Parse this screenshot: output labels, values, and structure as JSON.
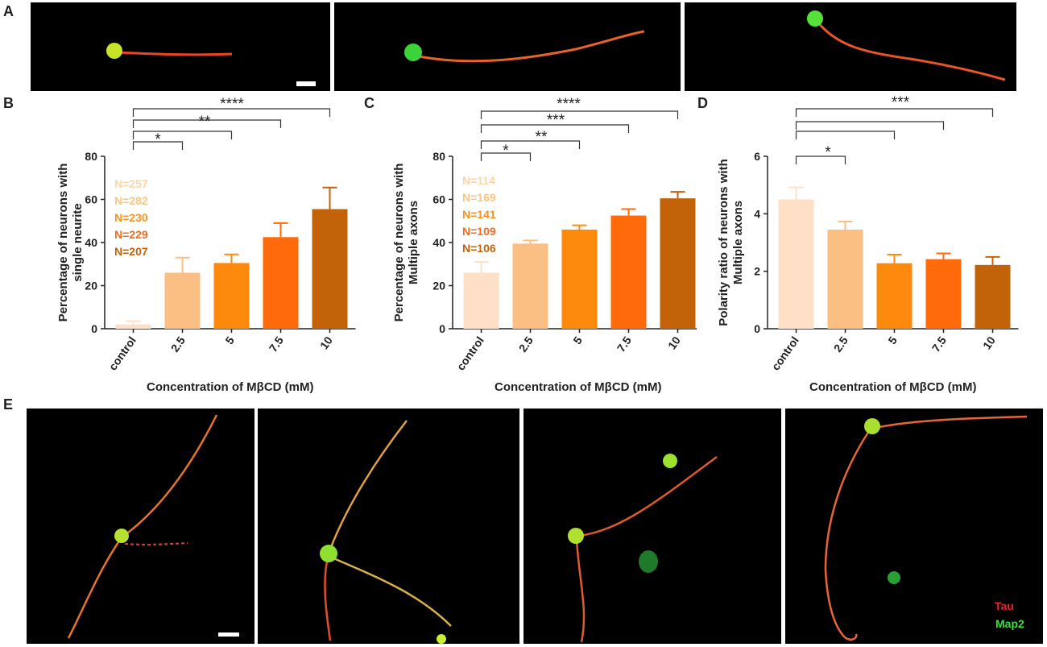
{
  "panels": {
    "a": "A",
    "b": "B",
    "c": "C",
    "d": "D",
    "e": "E"
  },
  "colors": [
    "#fde0c5",
    "#fbbf84",
    "#fe8a0d",
    "#ff6a0a",
    "#c26309"
  ],
  "n_colors": [
    "#fcd5a9",
    "#fdc57c",
    "#f7931e",
    "#f26b1d",
    "#c1640c"
  ],
  "legend": {
    "tau": "Tau",
    "map2": "Map2",
    "tau_color": "#e8232a",
    "map2_color": "#3be03b"
  },
  "chart_data": [
    {
      "type": "bar",
      "categories": [
        "control",
        "2.5",
        "5",
        "7.5",
        "10"
      ],
      "values": [
        2,
        26,
        30.5,
        42.5,
        55.5
      ],
      "errors": [
        1.5,
        7,
        4,
        6.5,
        10
      ],
      "xlabel": "Concentration of MβCD (mM)",
      "ylabel": "Percentage of neurons with single neurite",
      "ylabel_lines": [
        "Percentage of neurons with",
        "single neurite"
      ],
      "ylim": [
        0,
        80
      ],
      "yticks": [
        "0",
        "20",
        "40",
        "60",
        "80"
      ],
      "n_labels": [
        "N=257",
        "N=282",
        "N=230",
        "N=229",
        "N=207"
      ],
      "significance": [
        {
          "to": "2.5",
          "label": "*"
        },
        {
          "to": "5",
          "label": ""
        },
        {
          "to": "7.5",
          "label": "**"
        },
        {
          "to": "10",
          "label": "****"
        }
      ],
      "sig_label_rows": [
        {
          "between": [
            "2.5",
            "5"
          ],
          "label": "*"
        },
        {
          "between": [
            "5",
            "7.5"
          ],
          "label": "**"
        },
        {
          "between": [
            "7.5",
            "10"
          ],
          "label": "****"
        }
      ]
    },
    {
      "type": "bar",
      "categories": [
        "control",
        "2.5",
        "5",
        "7.5",
        "10"
      ],
      "values": [
        26,
        39.5,
        46,
        52.5,
        60.5
      ],
      "errors": [
        5,
        1.5,
        2,
        3,
        3
      ],
      "xlabel": "Concentration of MβCD (mM)",
      "ylabel": "Percentage of neurons with Multiple axons",
      "ylabel_lines": [
        "Percentage of neurons with",
        "Multiple axons"
      ],
      "ylim": [
        0,
        80
      ],
      "yticks": [
        "0",
        "20",
        "40",
        "60",
        "80"
      ],
      "n_labels": [
        "N=114",
        "N=169",
        "N=141",
        "N=109",
        "N=106"
      ],
      "sig_label_rows": [
        {
          "between": [
            "2.5",
            "5"
          ],
          "label": "*"
        },
        {
          "between": [
            "5",
            "7.5"
          ],
          "label": "**"
        },
        {
          "between": [
            "7.5",
            "10"
          ],
          "label": "***"
        },
        {
          "between": [
            "10",
            "10"
          ],
          "label": "****"
        }
      ]
    },
    {
      "type": "bar",
      "categories": [
        "control",
        "2.5",
        "5",
        "7.5",
        "10"
      ],
      "values": [
        4.5,
        3.45,
        2.28,
        2.42,
        2.22
      ],
      "errors": [
        0.42,
        0.28,
        0.3,
        0.2,
        0.28
      ],
      "xlabel": "Concentration of MβCD (mM)",
      "ylabel": "Polarity ratio of neurons with Multiple axons",
      "ylabel_lines": [
        "Polarity ratio of neurons with",
        "Multiple axons"
      ],
      "ylim": [
        0,
        6
      ],
      "yticks": [
        "0",
        "2",
        "4",
        "6"
      ],
      "sig_label_rows": [
        {
          "between": [
            "2.5",
            "2.5"
          ],
          "label": "*"
        },
        {
          "between": [
            "10",
            "10"
          ],
          "label": "***"
        }
      ]
    }
  ]
}
